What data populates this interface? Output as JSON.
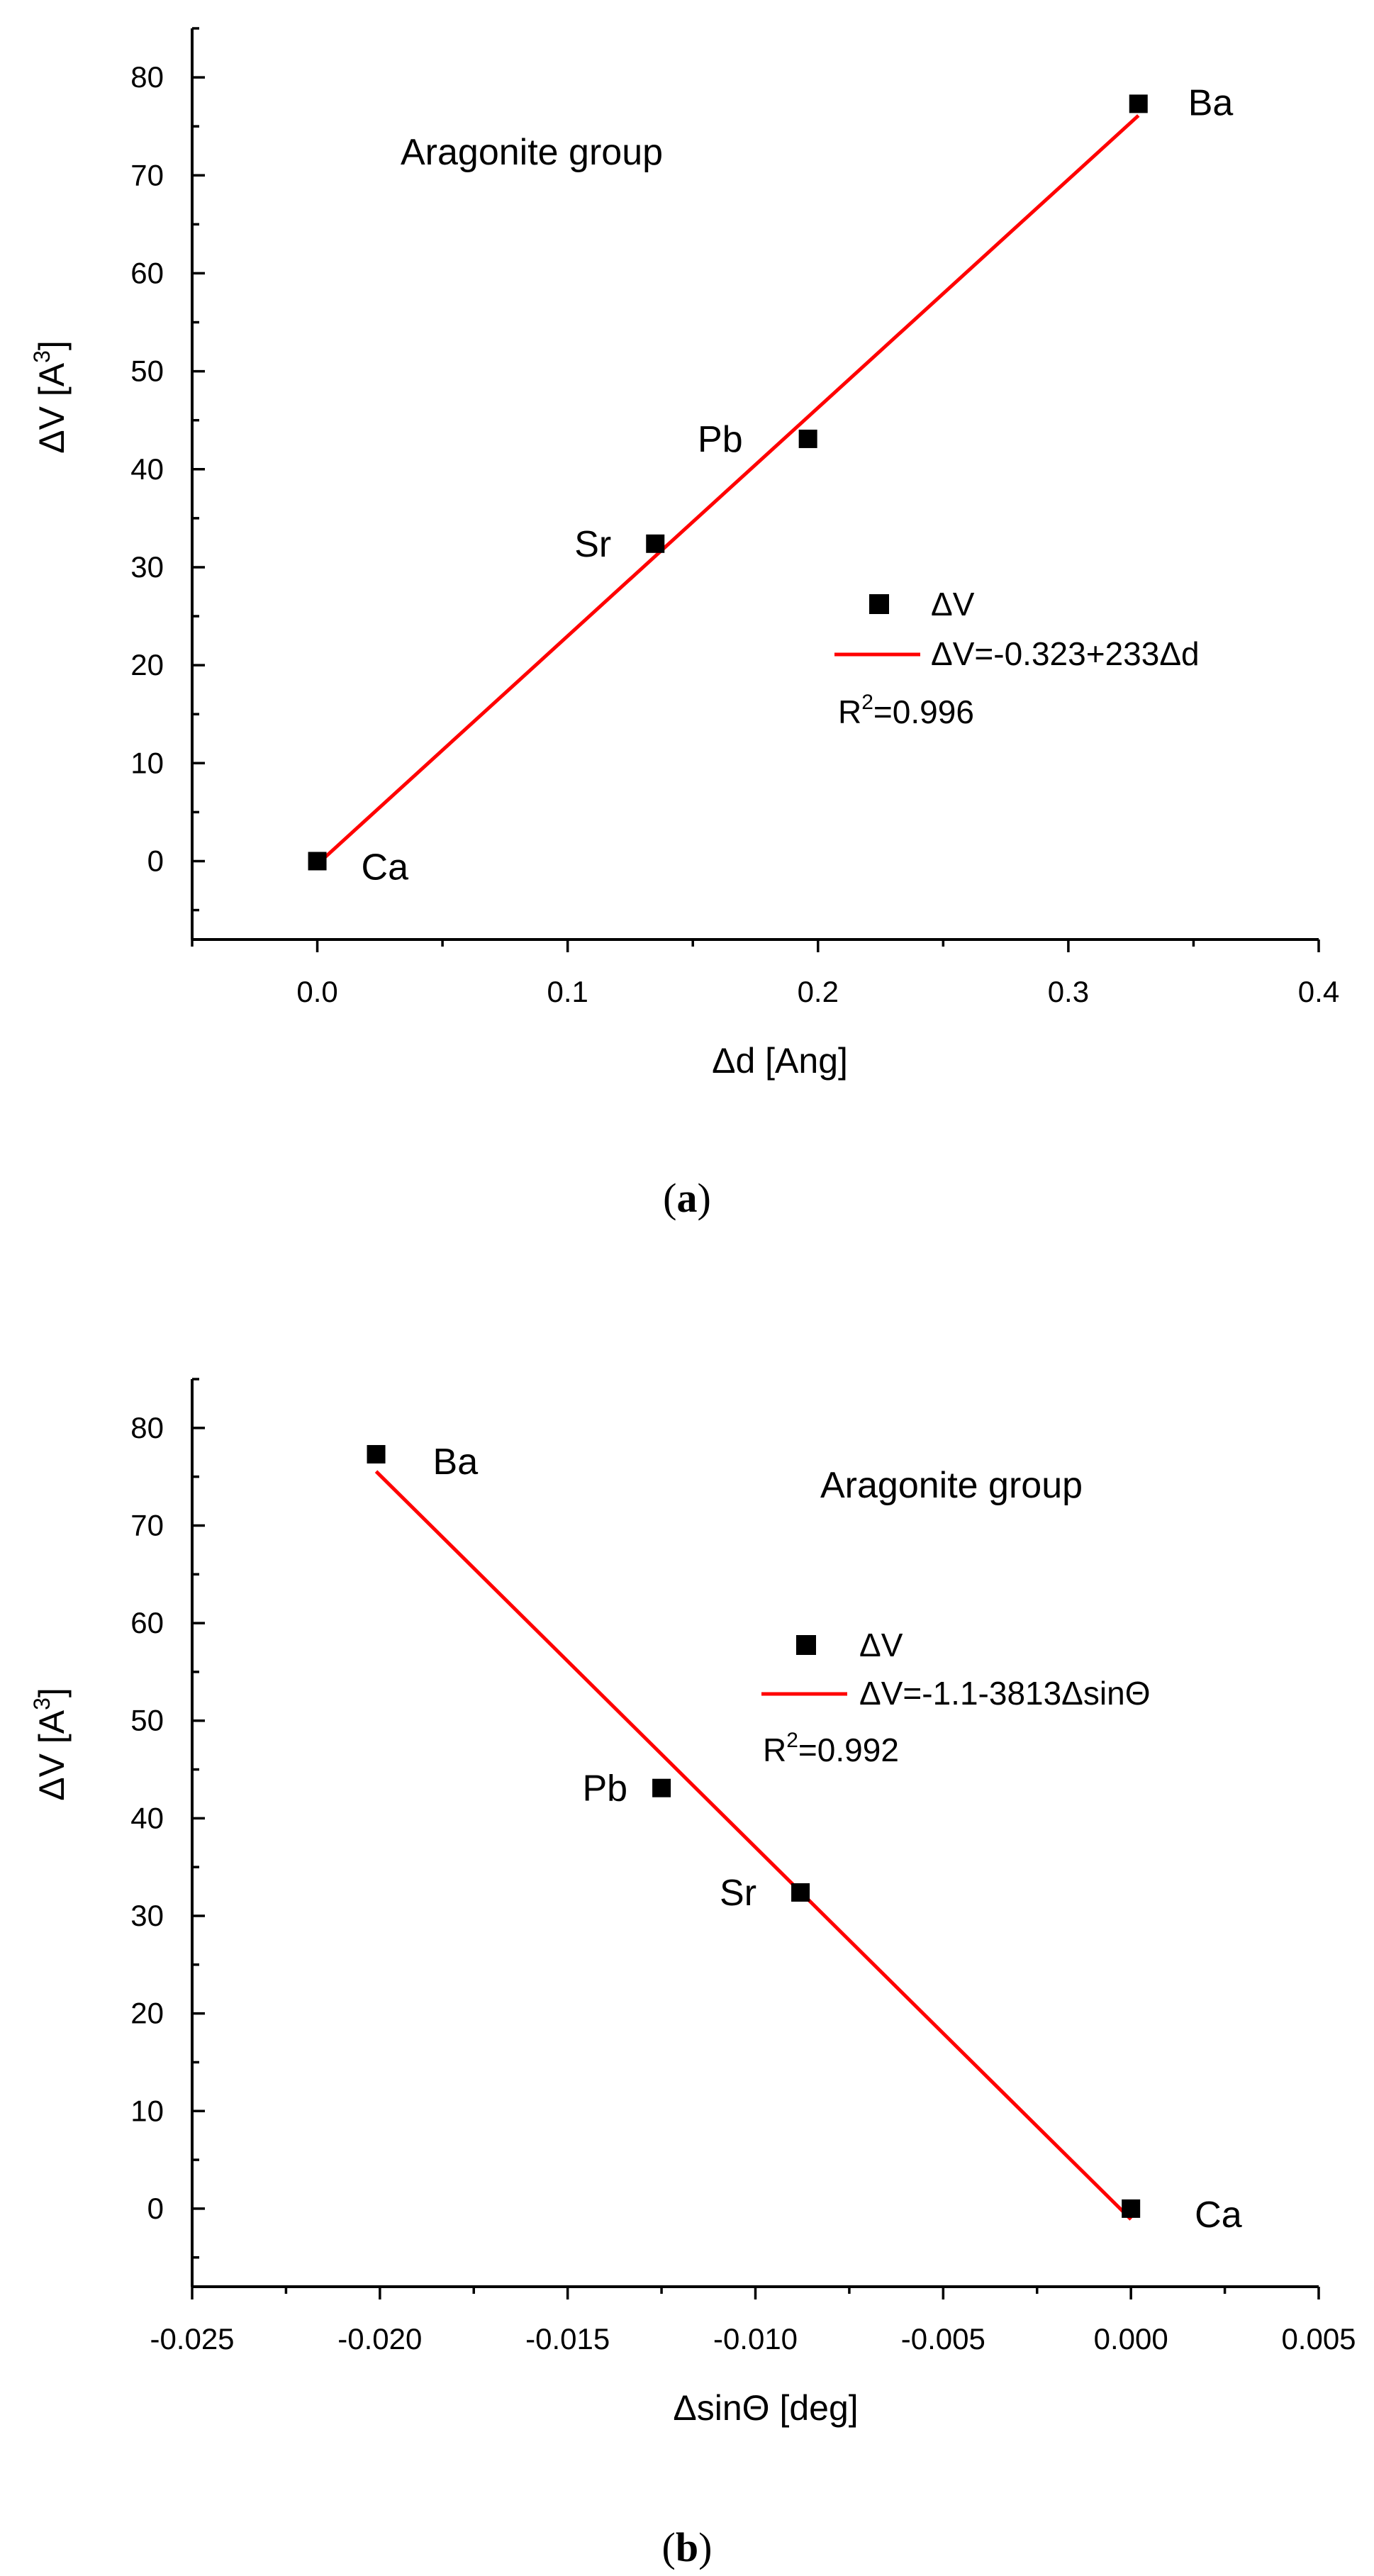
{
  "chart_data": [
    {
      "type": "scatter",
      "title": "",
      "caption": {
        "open": "(",
        "letter": "a",
        "close": ")"
      },
      "annotation": "Aragonite group",
      "xlabel": "Δd [Ang]",
      "ylabel": {
        "main": "ΔV [A",
        "sup": "3",
        "end": "]"
      },
      "xlim": [
        -0.05,
        0.4
      ],
      "ylim": [
        -8,
        85
      ],
      "xticks": [
        0.0,
        0.1,
        0.2,
        0.3,
        0.4
      ],
      "xtick_labels": [
        "0.0",
        "0.1",
        "0.2",
        "0.3",
        "0.4"
      ],
      "yticks": [
        0,
        10,
        20,
        30,
        40,
        50,
        60,
        70,
        80
      ],
      "ytick_labels": [
        "0",
        "10",
        "20",
        "30",
        "40",
        "50",
        "60",
        "70",
        "80"
      ],
      "series": [
        {
          "name": "ΔV",
          "kind": "points",
          "x": [
            0.0,
            0.135,
            0.196,
            0.328
          ],
          "y": [
            0.0,
            32.4,
            43.1,
            77.3
          ],
          "labels": [
            "Ca",
            "Sr",
            "Pb",
            "Ba"
          ]
        },
        {
          "name": "ΔV=-0.323+233Δd",
          "kind": "fit",
          "color": "#ff0000",
          "intercept": -0.323,
          "slope": 233,
          "x_range": [
            0.0,
            0.328
          ]
        }
      ],
      "r2": {
        "pre": "R",
        "sup": "2",
        "post": "=0.996"
      }
    },
    {
      "type": "scatter",
      "title": "",
      "caption": {
        "open": "(",
        "letter": "b",
        "close": ")"
      },
      "annotation": "Aragonite group",
      "xlabel": "ΔsinΘ [deg]",
      "ylabel": {
        "main": "ΔV [A",
        "sup": "3",
        "end": "]"
      },
      "xlim": [
        -0.025,
        0.005
      ],
      "ylim": [
        -8,
        85
      ],
      "xticks": [
        -0.025,
        -0.02,
        -0.015,
        -0.01,
        -0.005,
        0.0,
        0.005
      ],
      "xtick_labels": [
        "-0.025",
        "-0.020",
        "-0.015",
        "-0.010",
        "-0.005",
        "0.000",
        "0.005"
      ],
      "yticks": [
        0,
        10,
        20,
        30,
        40,
        50,
        60,
        70,
        80
      ],
      "ytick_labels": [
        "0",
        "10",
        "20",
        "30",
        "40",
        "50",
        "60",
        "70",
        "80"
      ],
      "series": [
        {
          "name": "ΔV",
          "kind": "points",
          "x": [
            -0.0201,
            -0.0125,
            -0.0088,
            0.0
          ],
          "y": [
            77.3,
            43.1,
            32.4,
            0.0
          ],
          "labels": [
            "Ba",
            "Pb",
            "Sr",
            "Ca"
          ]
        },
        {
          "name": "ΔV=-1.1-3813ΔsinΘ",
          "kind": "fit",
          "color": "#ff0000",
          "intercept": -1.1,
          "slope": -3813,
          "x_range": [
            -0.0201,
            0.0
          ]
        }
      ],
      "r2": {
        "pre": "R",
        "sup": "2",
        "post": "=0.992"
      }
    }
  ]
}
